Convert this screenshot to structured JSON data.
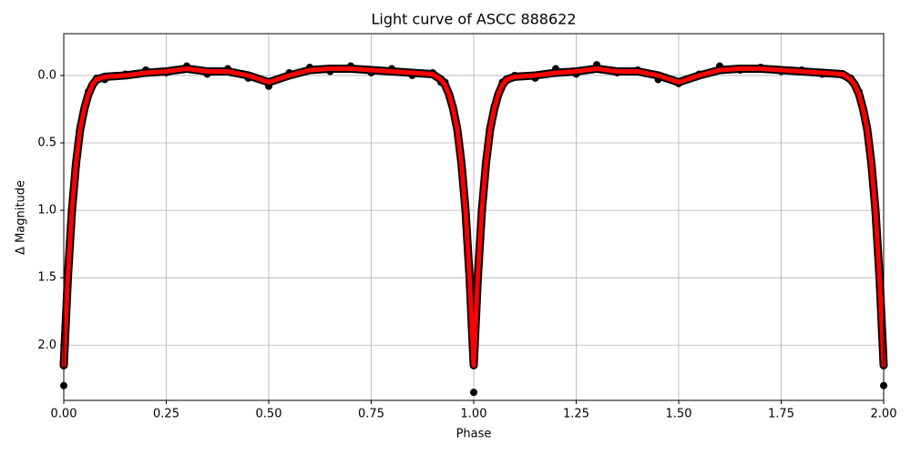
{
  "chart_data": {
    "type": "line",
    "title": "Light curve of ASCC 888622",
    "x_label": "Phase",
    "y_label": "Δ Magnitude",
    "invert_y": true,
    "grid": true,
    "xlim": [
      0,
      2
    ],
    "ylim": [
      -0.31,
      2.41
    ],
    "xticks": [
      {
        "value": 0,
        "label": "0.00"
      },
      {
        "value": 0.25,
        "label": "0.25"
      },
      {
        "value": 0.5,
        "label": "0.50"
      },
      {
        "value": 0.75,
        "label": "0.75"
      },
      {
        "value": 1,
        "label": "1.00"
      },
      {
        "value": 1.25,
        "label": "1.25"
      },
      {
        "value": 1.5,
        "label": "1.50"
      },
      {
        "value": 1.75,
        "label": "1.75"
      },
      {
        "value": 2,
        "label": "2.00"
      }
    ],
    "yticks": [
      {
        "value": 0,
        "label": "0.0"
      },
      {
        "value": 0.5,
        "label": "0.5"
      },
      {
        "value": 1,
        "label": "1.0"
      },
      {
        "value": 1.5,
        "label": "1.5"
      },
      {
        "value": 2,
        "label": "2.0"
      }
    ],
    "series": [
      {
        "style": "points",
        "color": "#000000",
        "x": [
          0,
          0.01,
          0.02,
          0.03,
          0.04,
          0.05,
          0.06,
          0.07,
          0.08,
          0.1,
          0.15,
          0.2,
          0.25,
          0.3,
          0.35,
          0.4,
          0.45,
          0.5,
          0.55,
          0.6,
          0.65,
          0.7,
          0.75,
          0.8,
          0.85,
          0.9,
          0.92,
          0.93,
          0.94,
          0.95,
          0.96,
          0.97,
          0.98,
          0.99,
          1,
          1.01,
          1.02,
          1.03,
          1.04,
          1.05,
          1.06,
          1.07,
          1.08,
          1.1,
          1.15,
          1.2,
          1.25,
          1.3,
          1.35,
          1.4,
          1.45,
          1.5,
          1.55,
          1.6,
          1.65,
          1.7,
          1.75,
          1.8,
          1.85,
          1.9,
          1.92,
          1.93,
          1.94,
          1.95,
          1.96,
          1.97,
          1.98,
          1.99,
          2
        ],
        "values": [
          2.3,
          1.55,
          0.98,
          0.67,
          0.38,
          0.27,
          0.12,
          0.08,
          0.02,
          0.03,
          -0.01,
          -0.04,
          -0.02,
          -0.07,
          -0.01,
          -0.05,
          0.02,
          0.08,
          -0.02,
          -0.06,
          -0.03,
          -0.07,
          -0.02,
          -0.05,
          0.0,
          -0.02,
          0.05,
          0.05,
          0.16,
          0.23,
          0.42,
          0.63,
          1.03,
          1.45,
          2.35,
          1.45,
          1.03,
          0.62,
          0.42,
          0.23,
          0.15,
          0.05,
          0.04,
          0.0,
          0.02,
          -0.05,
          -0.01,
          -0.08,
          -0.02,
          -0.04,
          0.03,
          0.06,
          -0.01,
          -0.07,
          -0.04,
          -0.06,
          -0.03,
          -0.04,
          -0.01,
          0.0,
          0.02,
          0.08,
          0.12,
          0.27,
          0.38,
          0.67,
          0.97,
          1.55,
          2.3
        ]
      },
      {
        "style": "line",
        "color": "#ff0000",
        "x": [
          0,
          0.01,
          0.02,
          0.03,
          0.04,
          0.05,
          0.06,
          0.07,
          0.08,
          0.1,
          0.15,
          0.2,
          0.25,
          0.3,
          0.35,
          0.4,
          0.45,
          0.5,
          0.55,
          0.6,
          0.65,
          0.7,
          0.75,
          0.8,
          0.85,
          0.9,
          0.92,
          0.93,
          0.94,
          0.95,
          0.96,
          0.97,
          0.98,
          0.99,
          1,
          1.01,
          1.02,
          1.03,
          1.04,
          1.05,
          1.06,
          1.07,
          1.08,
          1.1,
          1.15,
          1.2,
          1.25,
          1.3,
          1.35,
          1.4,
          1.45,
          1.5,
          1.55,
          1.6,
          1.65,
          1.7,
          1.75,
          1.8,
          1.85,
          1.9,
          1.92,
          1.93,
          1.94,
          1.95,
          1.96,
          1.97,
          1.98,
          1.99,
          2
        ],
        "values": [
          2.15,
          1.5,
          1.0,
          0.65,
          0.4,
          0.25,
          0.14,
          0.07,
          0.03,
          0.01,
          0.0,
          -0.02,
          -0.03,
          -0.05,
          -0.03,
          -0.03,
          0.0,
          0.05,
          0.0,
          -0.04,
          -0.05,
          -0.05,
          -0.04,
          -0.03,
          -0.02,
          -0.01,
          0.03,
          0.07,
          0.14,
          0.25,
          0.4,
          0.65,
          1.0,
          1.5,
          2.15,
          1.5,
          1.0,
          0.65,
          0.4,
          0.25,
          0.14,
          0.07,
          0.03,
          0.01,
          0.0,
          -0.02,
          -0.03,
          -0.05,
          -0.03,
          -0.03,
          0.0,
          0.05,
          0.0,
          -0.04,
          -0.05,
          -0.05,
          -0.04,
          -0.03,
          -0.02,
          -0.01,
          0.03,
          0.07,
          0.14,
          0.25,
          0.4,
          0.65,
          1.0,
          1.5,
          2.15
        ]
      }
    ]
  }
}
